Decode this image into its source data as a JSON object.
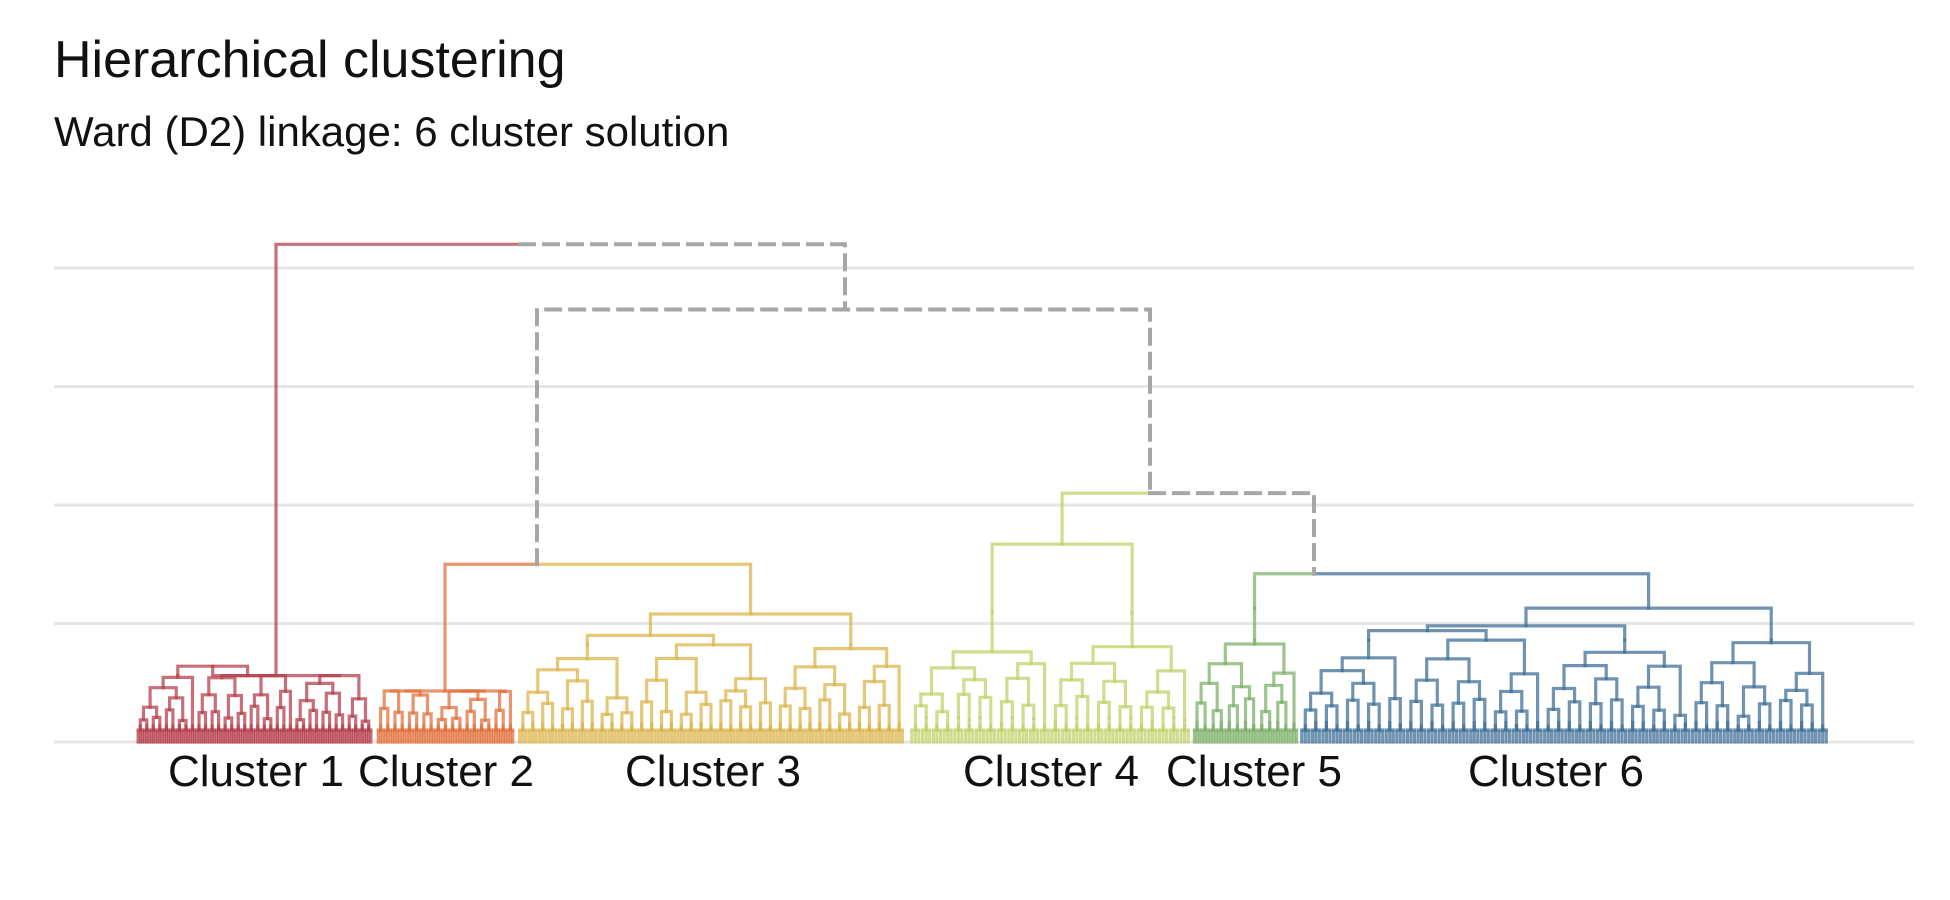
{
  "chart_data": {
    "type": "dendrogram",
    "title": "Hierarchical clustering",
    "subtitle": "Ward (D2) linkage: 6 cluster solution",
    "xlabel": "",
    "ylabel": "",
    "grid": "horizontal",
    "legend": "none",
    "ylim": [
      0,
      4
    ],
    "gridlines_y": [
      0,
      1,
      2,
      3,
      4
    ],
    "clusters": [
      {
        "name": "Cluster 1",
        "color": "#b5404e",
        "merge_height": 0.56,
        "subtree": [
          [
            0.56,
            [
              0.29,
              0.38,
              0.46,
              0.88,
              1.17,
              1.35,
              0.17,
              1.47,
              1.63
            ]
          ],
          [
            0.56,
            [
              0.92,
              0.69,
              1.0,
              1.07,
              0.41,
              0.74,
              0.85,
              1.2,
              1.51,
              0.54,
              0.34,
              0.63,
              1.39,
              0.79,
              1.28
            ]
          ],
          [
            0.56,
            [
              0.25,
              1.58,
              1.12,
              0.48,
              0.95,
              0.32,
              0.7,
              1.44,
              0.59,
              1.03,
              0.12,
              1.26
            ]
          ]
        ]
      },
      {
        "name": "Cluster 2",
        "color": "#e0713e",
        "merge_height": 0.43,
        "subtree": [
          [
            0.43,
            [
              1.38,
              0.59,
              1.02,
              1.28,
              0.94,
              0.53,
              0.87,
              1.49
            ]
          ],
          [
            0.43,
            [
              0.33,
              1.62,
              0.45,
              0.15,
              1.1,
              0.74,
              0.28,
              1.54,
              1.19,
              0.65,
              0.4
            ]
          ]
        ]
      },
      {
        "name": "Cluster 3",
        "color": "#dbb44c",
        "merge_height": 1.08,
        "subtree": [
          [
            0.82,
            [
              0.38,
              0.95,
              1.23,
              0.58,
              0.72,
              1.09,
              1.44,
              0.88,
              0.2,
              1.61,
              0.67,
              0.31
            ]
          ],
          [
            0.82,
            [
              1.37,
              1.54,
              0.47,
              1.01,
              0.26,
              0.8,
              1.14,
              0.57,
              1.48,
              0.13,
              0.9,
              0.35,
              1.29,
              0.64
            ]
          ],
          [
            0.82,
            [
              0.99,
              0.41,
              0.76,
              1.2,
              1.57,
              0.52,
              0.24,
              1.34,
              0.86,
              0.61,
              1.05,
              0.17,
              1.43
            ]
          ]
        ]
      },
      {
        "name": "Cluster 4",
        "color": "#c2d06a",
        "merge_height": 1.67,
        "subtree": [
          [
            1.09,
            [
              0.44,
              1.16,
              0.7,
              0.32,
              1.52,
              0.97,
              1.24,
              0.19,
              0.83,
              1.4,
              0.58,
              1.05,
              0.27
            ]
          ],
          [
            1.09,
            [
              0.89,
              0.5,
              1.31,
              0.14,
              0.76,
              1.55,
              0.36,
              1.12,
              0.66,
              0.92,
              0.23,
              1.47,
              1.01
            ]
          ]
        ]
      },
      {
        "name": "Cluster 5",
        "color": "#7eb06a",
        "merge_height": 1.13,
        "subtree": [
          [
            0.86,
            [
              1.18,
              0.64,
              0.47,
              1.36,
              0.93,
              0.25,
              1.58,
              0.72,
              0.39,
              1.07,
              1.25,
              0.56,
              0.81
            ]
          ]
        ]
      },
      {
        "name": "Cluster 6",
        "color": "#3f6f97",
        "merge_height": 1.13,
        "subtree": [
          [
            0.86,
            [
              0.53,
              1.22,
              0.91,
              0.3,
              1.45,
              0.68,
              1.08,
              0.42,
              1.6,
              0.77
            ]
          ],
          [
            0.86,
            [
              1.33,
              0.2,
              0.99,
              0.61,
              1.17,
              0.47,
              1.52,
              0.84,
              0.35,
              1.26,
              0.72,
              0.11,
              1.41
            ]
          ],
          [
            0.86,
            [
              0.58,
              0.95,
              1.3,
              0.23,
              1.13,
              0.66,
              1.48,
              0.39,
              0.87,
              1.02,
              0.51,
              1.37,
              0.18,
              0.79
            ]
          ],
          [
            0.86,
            [
              1.21,
              0.45,
              0.93,
              1.56,
              0.28,
              0.7,
              1.1,
              0.59,
              1.42,
              0.34,
              1.0,
              0.82,
              0.15
            ]
          ]
        ]
      }
    ],
    "merges": [
      {
        "id": "m1",
        "left": "cluster:0",
        "right": "cluster:1",
        "height": 1.5,
        "left_color": "#e0713e",
        "right_color": "#dbb44c",
        "segment": "1-2 and 3"
      },
      {
        "id": "m2",
        "left": "cluster:3",
        "right": "cluster:4",
        "height": 1.4,
        "color": "#c2d06a"
      },
      {
        "id": "m3",
        "left": "cluster:4",
        "right": "cluster:5",
        "height": 1.42,
        "left_color": "#7eb06a",
        "right_color": "#3f6f97"
      }
    ],
    "top_merges": [
      {
        "left_color": "#c2d06a",
        "height": 2.1,
        "dashed": true
      },
      {
        "height": 3.65,
        "dashed": true
      },
      {
        "height": 4.2,
        "left_color": "#b5404e",
        "dashed": true
      }
    ],
    "dashed_color": "#a6a6a6"
  }
}
